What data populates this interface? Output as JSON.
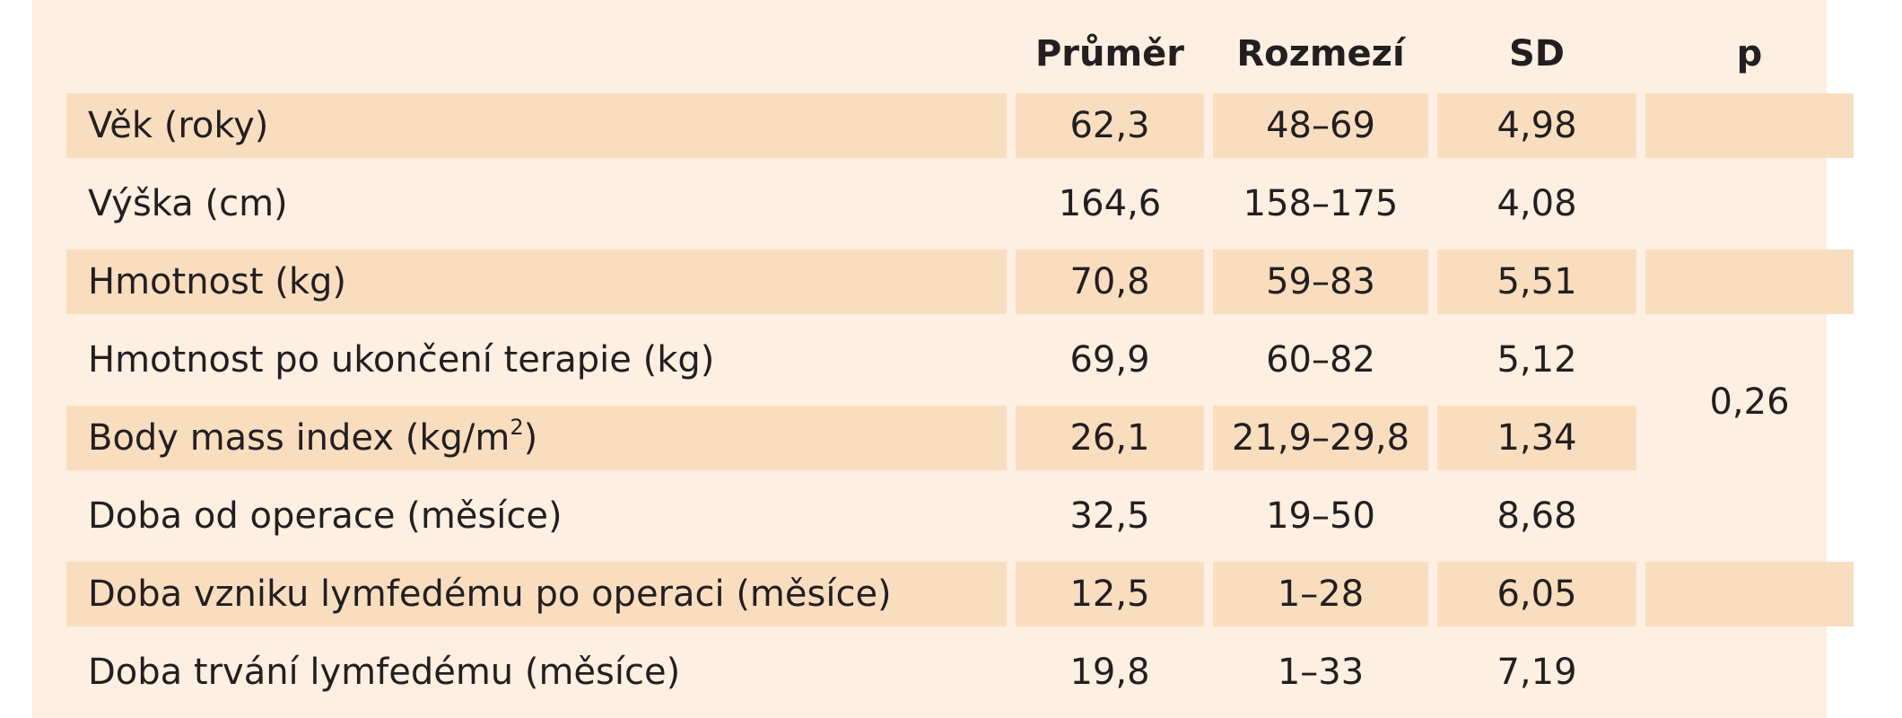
{
  "table": {
    "headers": [
      "",
      "Průměr",
      "Rozmezí",
      "SD",
      "p"
    ],
    "rows": [
      {
        "label": "Věk (roky)",
        "unit_sup": "",
        "unit_suffix": "",
        "mean": "62,3",
        "range": "48–69",
        "sd": "4,98"
      },
      {
        "label": "Výška (cm)",
        "unit_sup": "",
        "unit_suffix": "",
        "mean": "164,6",
        "range": "158–175",
        "sd": "4,08"
      },
      {
        "label": "Hmotnost (kg)",
        "unit_sup": "",
        "unit_suffix": "",
        "mean": "70,8",
        "range": "59–83",
        "sd": "5,51"
      },
      {
        "label": "Hmotnost po ukončení terapie (kg)",
        "unit_sup": "",
        "unit_suffix": "",
        "mean": "69,9",
        "range": "60–82",
        "sd": "5,12"
      },
      {
        "label": "Body mass index (kg/m",
        "unit_sup": "2",
        "unit_suffix": ")",
        "mean": "26,1",
        "range": "21,9–29,8",
        "sd": "1,34"
      },
      {
        "label": "Doba od operace (měsíce)",
        "unit_sup": "",
        "unit_suffix": "",
        "mean": "32,5",
        "range": "19–50",
        "sd": "8,68"
      },
      {
        "label": "Doba vzniku lymfedému po operaci (měsíce)",
        "unit_sup": "",
        "unit_suffix": "",
        "mean": "12,5",
        "range": "1–28",
        "sd": "6,05"
      },
      {
        "label": "Doba trvání lymfedému (měsíce)",
        "unit_sup": "",
        "unit_suffix": "",
        "mean": "19,8",
        "range": "1–33",
        "sd": "7,19"
      }
    ],
    "p_value": "0,26"
  },
  "colors": {
    "panel_background": "#fdefe1",
    "band_background": "#f9ddbf",
    "text": "#231f20"
  }
}
